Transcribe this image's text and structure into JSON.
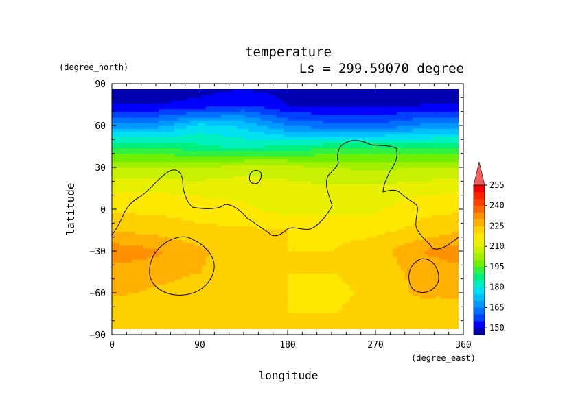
{
  "chart_data": {
    "type": "heatmap",
    "title": "temperature",
    "subtitle": "Ls = 299.59070 degree",
    "xlabel": "longitude",
    "ylabel": "latitude",
    "x_unit": "(degree_east)",
    "y_unit": "(degree_north)",
    "xlim": [
      0,
      360
    ],
    "ylim": [
      -90,
      90
    ],
    "x_ticks": [
      0,
      90,
      180,
      270,
      360
    ],
    "y_ticks": [
      -90,
      -60,
      -30,
      0,
      30,
      60,
      90
    ],
    "colorbar": {
      "levels": [
        145,
        150,
        155,
        160,
        165,
        170,
        175,
        180,
        185,
        190,
        195,
        200,
        205,
        210,
        215,
        220,
        225,
        230,
        235,
        240,
        245,
        250,
        255,
        260
      ],
      "labels": [
        150,
        165,
        180,
        195,
        210,
        225,
        240,
        255
      ],
      "colors": [
        "#0000b0",
        "#0000ff",
        "#0040ff",
        "#0070ff",
        "#0098ff",
        "#00c0ff",
        "#00e0f0",
        "#00f0c0",
        "#00f080",
        "#30f040",
        "#70f000",
        "#a0f000",
        "#c8f000",
        "#e8f000",
        "#ffe800",
        "#ffd000",
        "#ffb000",
        "#ff9000",
        "#ff6800",
        "#ff4000",
        "#ff2000",
        "#f00000",
        "#f06060"
      ]
    },
    "data_grid": {
      "lon": [
        0,
        45,
        90,
        135,
        180,
        225,
        270,
        315,
        360
      ],
      "lat": [
        -90,
        -75,
        -60,
        -45,
        -30,
        -15,
        0,
        15,
        30,
        45,
        60,
        75,
        90
      ],
      "values": [
        [
          221,
          221,
          221,
          221,
          221,
          221,
          221,
          221,
          221
        ],
        [
          221,
          221,
          221,
          221,
          220,
          220,
          221,
          221,
          221
        ],
        [
          226,
          224,
          222,
          220,
          220,
          219,
          221,
          226,
          226
        ],
        [
          228,
          227,
          225,
          221,
          220,
          220,
          221,
          227,
          228
        ],
        [
          233,
          231,
          226,
          222,
          220,
          220,
          222,
          230,
          233
        ],
        [
          225,
          223,
          221,
          221,
          220,
          219,
          219,
          221,
          225
        ],
        [
          219,
          219,
          218,
          216,
          213,
          213,
          214,
          219,
          219
        ],
        [
          214,
          214,
          213,
          213,
          212,
          211,
          211,
          213,
          214
        ],
        [
          205,
          205,
          205,
          208,
          207,
          205,
          204,
          205,
          205
        ],
        [
          189,
          190,
          186,
          184,
          186,
          189,
          190,
          189,
          189
        ],
        [
          168,
          168,
          177,
          174,
          165,
          162,
          161,
          166,
          168
        ],
        [
          150,
          150,
          151,
          155,
          150,
          149,
          149,
          150,
          150
        ],
        [
          148,
          148,
          148,
          148,
          148,
          148,
          148,
          148,
          148
        ]
      ]
    },
    "contour_line": "black outline (topography)",
    "grid": false,
    "legend": "right"
  }
}
